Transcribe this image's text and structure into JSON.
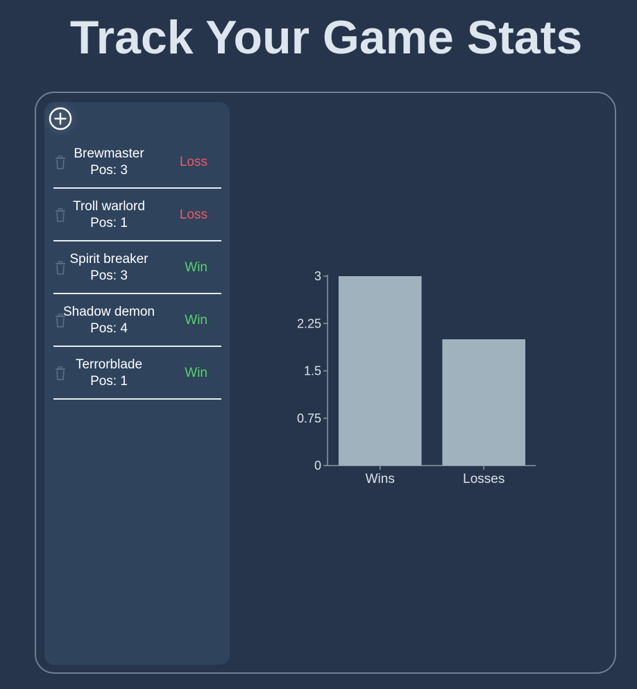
{
  "page": {
    "title": "Track Your Game Stats"
  },
  "sidebar": {
    "add_icon": "plus-circle-icon",
    "delete_icon": "trash-icon",
    "games": [
      {
        "hero": "Brewmaster",
        "position_label": "Pos: 3",
        "result": "Loss"
      },
      {
        "hero": "Troll warlord",
        "position_label": "Pos: 1",
        "result": "Loss"
      },
      {
        "hero": "Spirit breaker",
        "position_label": "Pos: 3",
        "result": "Win"
      },
      {
        "hero": "Shadow demon",
        "position_label": "Pos: 4",
        "result": "Win"
      },
      {
        "hero": "Terrorblade",
        "position_label": "Pos: 1",
        "result": "Win"
      }
    ]
  },
  "colors": {
    "background": "#26354b",
    "sidebar": "#2f435d",
    "loss": "#ee5a63",
    "win": "#58d36a",
    "bar": "#9fb2be"
  },
  "chart_data": {
    "type": "bar",
    "categories": [
      "Wins",
      "Losses"
    ],
    "values": [
      3,
      2
    ],
    "ylim": [
      0,
      3
    ],
    "yticks": [
      0,
      0.75,
      1.5,
      2.25,
      3
    ],
    "ytick_labels": [
      "0",
      "0.75",
      "1.5",
      "2.25",
      "3"
    ],
    "grid": false
  }
}
